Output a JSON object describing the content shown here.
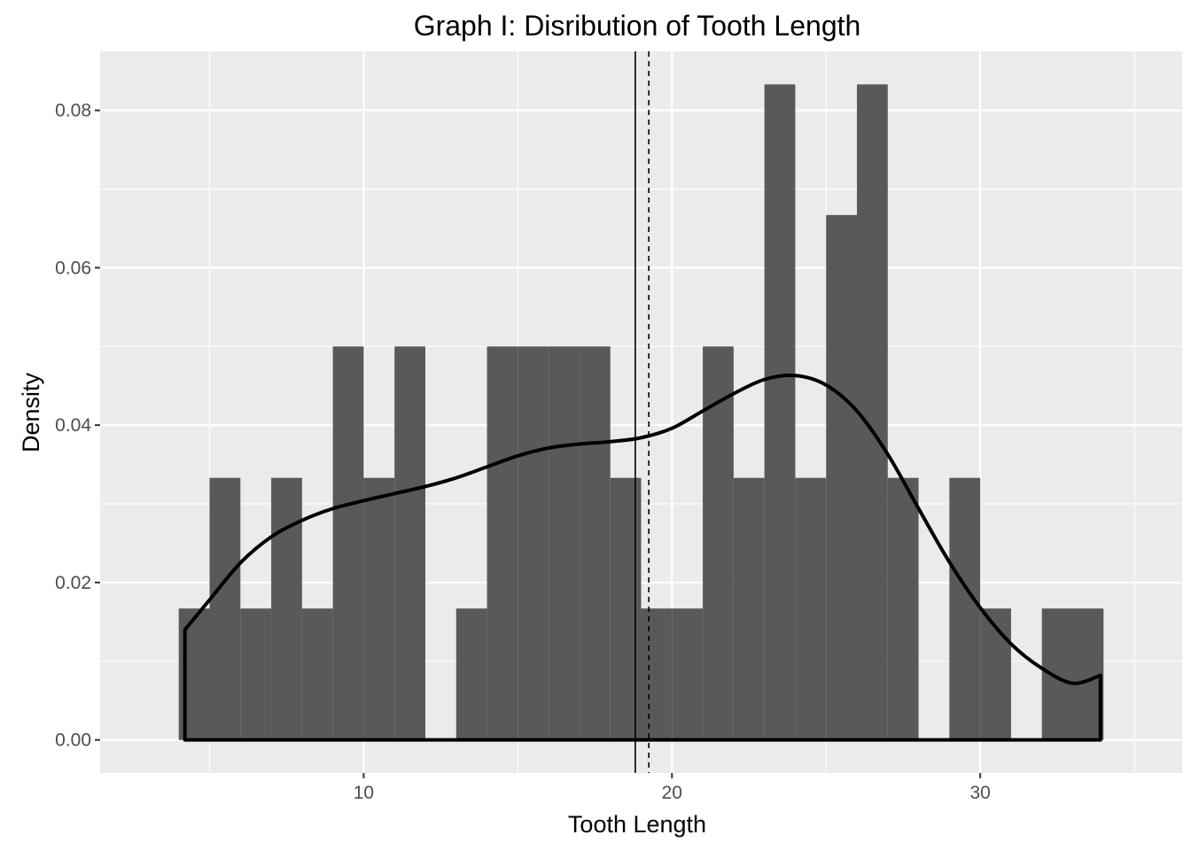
{
  "chart_data": {
    "type": "bar",
    "title": "Graph I: Disribution of Tooth Length",
    "xlabel": "Tooth Length",
    "ylabel": "Density",
    "xlim": [
      1.45,
      36.55
    ],
    "ylim": [
      -0.0042,
      0.0875
    ],
    "x_ticks": [
      10,
      20,
      30
    ],
    "x_tick_labels": [
      "10",
      "20",
      "30"
    ],
    "x_minor_ticks": [
      5,
      15,
      25,
      35
    ],
    "y_ticks": [
      0,
      0.02,
      0.04,
      0.06,
      0.08
    ],
    "y_tick_labels": [
      "0.00",
      "0.02",
      "0.04",
      "0.06",
      "0.08"
    ],
    "y_minor_ticks": [
      0.01,
      0.03,
      0.05,
      0.07
    ],
    "grid": true,
    "colors": {
      "panel": "#ebebeb",
      "grid": "#ffffff",
      "bar": "#595959",
      "density_line": "#000000",
      "reference_lines": "#000000"
    },
    "histogram": {
      "bin_width": 1,
      "bin_left_edges": [
        4,
        5,
        6,
        7,
        8,
        9,
        10,
        11,
        12,
        13,
        14,
        15,
        16,
        17,
        18,
        19,
        20,
        21,
        22,
        23,
        24,
        25,
        26,
        27,
        28,
        29,
        30,
        31,
        32,
        33
      ],
      "density": [
        0.0167,
        0.0333,
        0.0167,
        0.0333,
        0.0167,
        0.05,
        0.0333,
        0.05,
        0,
        0.0167,
        0.05,
        0.05,
        0.05,
        0.05,
        0.0333,
        0.0167,
        0.0167,
        0.05,
        0.0333,
        0.0833,
        0.0333,
        0.0667,
        0.0833,
        0.0333,
        0,
        0.0333,
        0.0167,
        0,
        0.0167,
        0.0167
      ]
    },
    "density_curve": {
      "x": [
        4.2,
        5,
        6,
        7,
        8,
        9,
        10,
        11,
        12,
        13,
        14,
        15,
        16,
        17,
        18,
        19,
        20,
        21,
        22,
        23,
        24,
        25,
        26,
        27,
        28,
        29,
        30,
        31,
        32,
        33,
        33.9
      ],
      "y": [
        0.014,
        0.0178,
        0.0225,
        0.0258,
        0.0279,
        0.0294,
        0.0304,
        0.0313,
        0.0322,
        0.0333,
        0.0347,
        0.0361,
        0.0371,
        0.0376,
        0.0379,
        0.0384,
        0.0396,
        0.0418,
        0.044,
        0.0458,
        0.0463,
        0.0451,
        0.0418,
        0.0363,
        0.0294,
        0.0226,
        0.0168,
        0.0122,
        0.0091,
        0.0072,
        0.0082
      ]
    },
    "reference_lines": [
      {
        "x": 18.81,
        "style": "solid"
      },
      {
        "x": 19.25,
        "style": "dashed"
      }
    ]
  }
}
